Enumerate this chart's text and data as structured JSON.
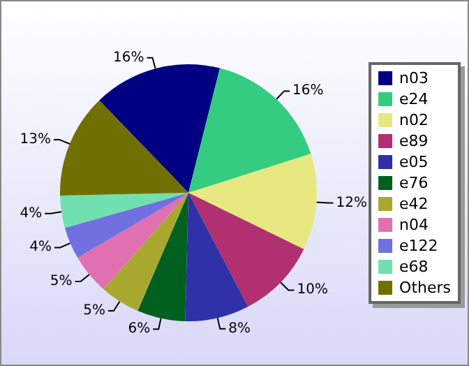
{
  "chart_data": {
    "type": "pie",
    "categories": [
      "n03",
      "e24",
      "n02",
      "e89",
      "e05",
      "e76",
      "e42",
      "n04",
      "e122",
      "e68",
      "Others"
    ],
    "values": [
      16,
      16,
      12,
      10,
      8,
      6,
      5,
      5,
      4,
      4,
      13
    ],
    "colors": [
      "#000080",
      "#33cc80",
      "#e8e880",
      "#b03070",
      "#3030a8",
      "#006020",
      "#a8a830",
      "#e070b0",
      "#7070e0",
      "#70e0b0",
      "#707000"
    ],
    "value_labels": [
      "16%",
      "16%",
      "12%",
      "10%",
      "8%",
      "6%",
      "5%",
      "5%",
      "4%",
      "4%",
      "13%"
    ],
    "legend": "right"
  }
}
